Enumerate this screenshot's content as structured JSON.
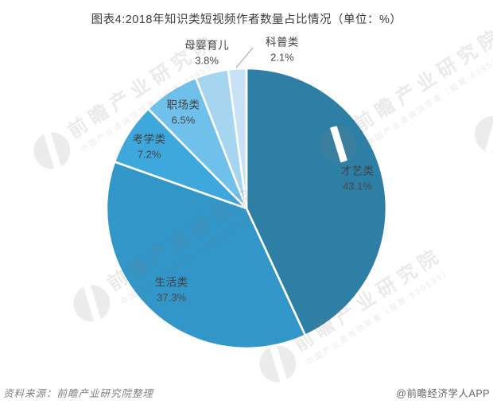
{
  "title": "图表4:2018年知识类短视频作者数量占比情况（单位：%）",
  "chart_data": {
    "type": "pie",
    "title": "2018年知识类短视频作者数量占比情况",
    "unit": "%",
    "direction": "clockwise",
    "start_angle_deg": 0,
    "legend": "none",
    "label_format": "category name + percent value",
    "slices": [
      {
        "label": "才艺类",
        "value": 43.1,
        "display": "43.1%",
        "color": "#2e7fa5",
        "label_position": "inside"
      },
      {
        "label": "生活类",
        "value": 37.3,
        "display": "37.3%",
        "color": "#3396c8",
        "label_position": "inside"
      },
      {
        "label": "考学类",
        "value": 7.2,
        "display": "7.2%",
        "color": "#3ea7db",
        "label_position": "inside"
      },
      {
        "label": "职场类",
        "value": 6.5,
        "display": "6.5%",
        "color": "#6fc0ea",
        "label_position": "inside"
      },
      {
        "label": "母婴育儿",
        "value": 3.8,
        "display": "3.8%",
        "color": "#a6d5f0",
        "label_position": "outside"
      },
      {
        "label": "科普类",
        "value": 2.1,
        "display": "2.1%",
        "color": "#c9e1f5",
        "label_position": "outside",
        "leader_line": true
      }
    ]
  },
  "watermark": {
    "brand_text": "前瞻产业研究院",
    "brand_subtext": "中国产业咨询领导者（股票:839599）"
  },
  "footer": {
    "source": "资料来源：前瞻产业研究院整理",
    "credit": "@前瞻经济学人APP"
  }
}
